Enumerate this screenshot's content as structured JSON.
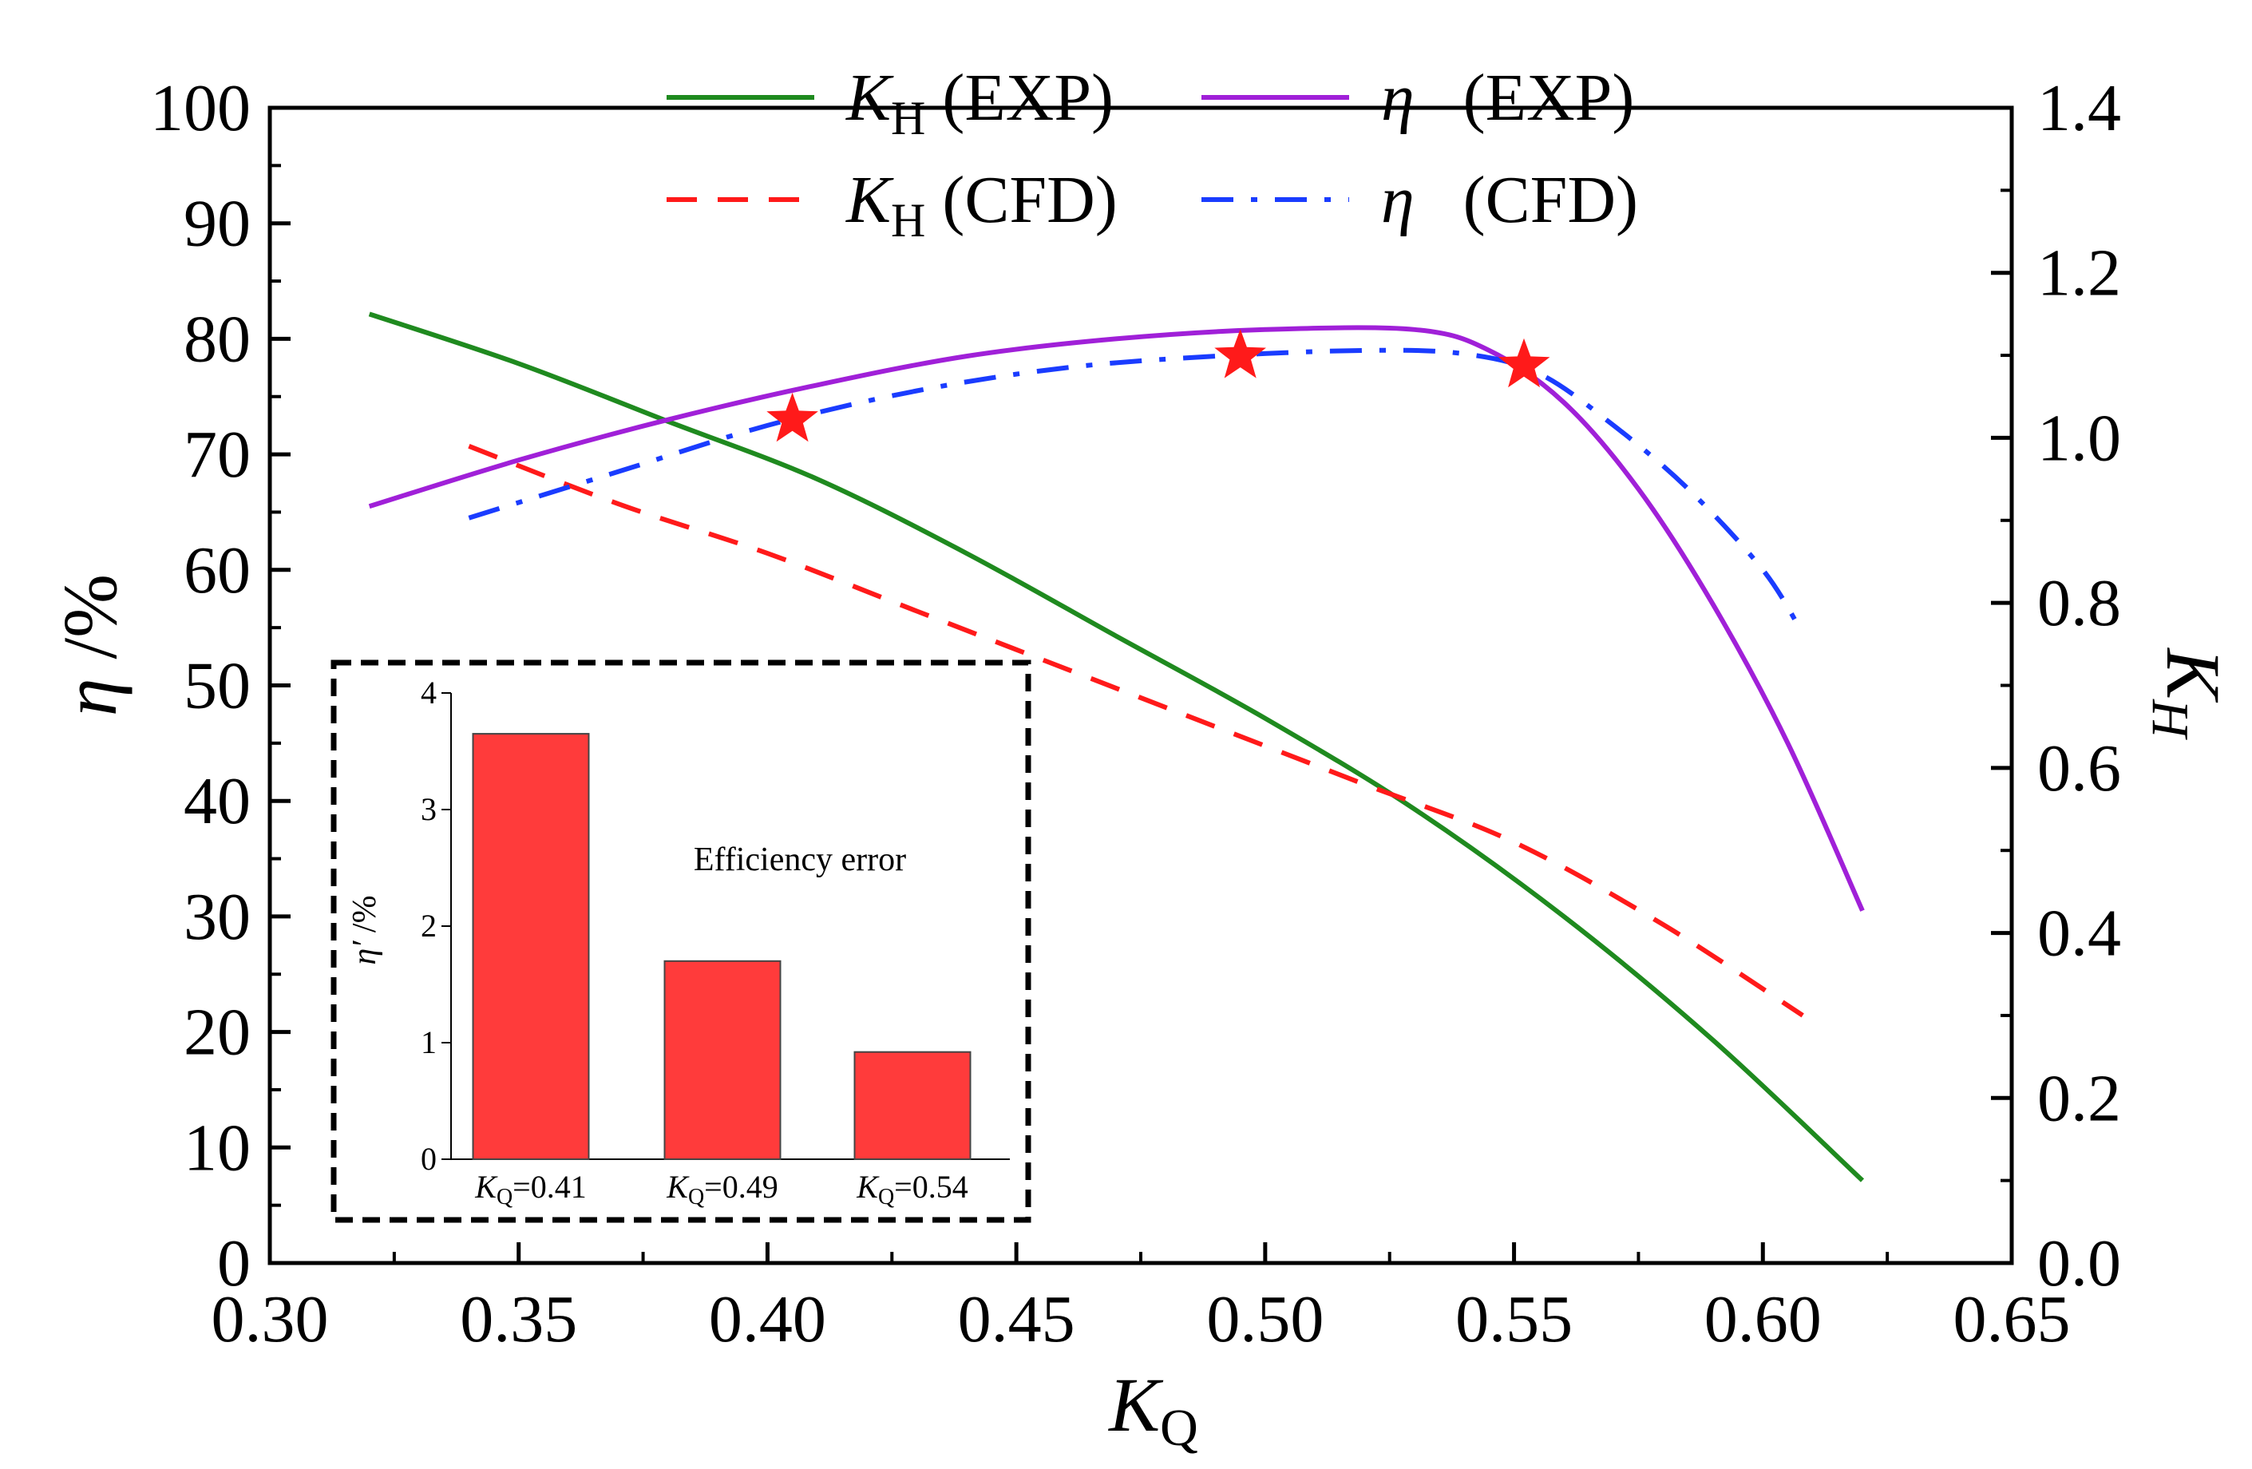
{
  "chart_data": [
    {
      "type": "line",
      "xlabel": "K_Q",
      "ylabel_left": "η /%",
      "ylabel_right": "K_H",
      "x_ticks": [
        "0.30",
        "0.35",
        "0.40",
        "0.45",
        "0.50",
        "0.55",
        "0.60",
        "0.65"
      ],
      "y_left_ticks": [
        "0",
        "10",
        "20",
        "30",
        "40",
        "50",
        "60",
        "70",
        "80",
        "90",
        "100"
      ],
      "y_right_ticks": [
        "0.0",
        "0.2",
        "0.4",
        "0.6",
        "0.8",
        "1.0",
        "1.2",
        "1.4"
      ],
      "xlim": [
        0.3,
        0.65
      ],
      "ylim_left": [
        0,
        100
      ],
      "ylim_right": [
        0,
        1.4
      ],
      "legend_position": "top",
      "series": [
        {
          "name": "K_H (EXP)",
          "label_main": "K",
          "label_sub": "H",
          "label_suffix": "(EXP)",
          "axis": "right",
          "style": "solid",
          "color": "#1f8a1f",
          "x": [
            0.32,
            0.35,
            0.38,
            0.41,
            0.44,
            0.47,
            0.5,
            0.53,
            0.56,
            0.59,
            0.62
          ],
          "y": [
            1.15,
            1.09,
            1.02,
            0.95,
            0.86,
            0.76,
            0.66,
            0.55,
            0.42,
            0.27,
            0.1
          ]
        },
        {
          "name": "K_H (CFD)",
          "label_main": "K",
          "label_sub": "H",
          "label_suffix": "(CFD)",
          "axis": "right",
          "style": "dash",
          "color": "#ff1a1a",
          "x": [
            0.34,
            0.37,
            0.4,
            0.43,
            0.46,
            0.49,
            0.52,
            0.55,
            0.58,
            0.608
          ],
          "y": [
            0.99,
            0.92,
            0.86,
            0.79,
            0.72,
            0.65,
            0.58,
            0.51,
            0.41,
            0.3
          ]
        },
        {
          "name": "η (EXP)",
          "label_main": "η",
          "label_sub": "",
          "label_suffix": "(EXP)",
          "axis": "left",
          "style": "solid",
          "color": "#a020d8",
          "x": [
            0.32,
            0.35,
            0.38,
            0.41,
            0.44,
            0.47,
            0.5,
            0.53,
            0.545,
            0.56,
            0.575,
            0.59,
            0.605,
            0.62
          ],
          "y": [
            65.5,
            69.5,
            73.0,
            76.0,
            78.5,
            80.0,
            80.8,
            80.8,
            79.0,
            74.5,
            67.0,
            57.0,
            45.0,
            30.5
          ]
        },
        {
          "name": "η (CFD)",
          "label_main": "η",
          "label_sub": "",
          "label_suffix": "(CFD)",
          "axis": "left",
          "style": "dashdot",
          "color": "#1a3cff",
          "x": [
            0.34,
            0.37,
            0.4,
            0.43,
            0.46,
            0.49,
            0.52,
            0.54,
            0.555,
            0.57,
            0.585,
            0.6,
            0.608
          ],
          "y": [
            64.5,
            68.5,
            72.5,
            75.5,
            77.5,
            78.5,
            79.0,
            78.7,
            77.0,
            72.5,
            67.0,
            60.0,
            54.5
          ]
        }
      ],
      "markers": [
        {
          "x": 0.405,
          "y": 73.0,
          "color": "#ff1a1a"
        },
        {
          "x": 0.495,
          "y": 78.5,
          "color": "#ff1a1a"
        },
        {
          "x": 0.552,
          "y": 77.7,
          "color": "#ff1a1a"
        }
      ]
    },
    {
      "type": "bar",
      "title": "Efficiency error",
      "ylabel": "η′ /%",
      "categories": [
        "K_Q=0.41",
        "K_Q=0.49",
        "K_Q=0.54"
      ],
      "category_value_labels": [
        "=0.41",
        "=0.49",
        "=0.54"
      ],
      "values": [
        3.65,
        1.7,
        0.92
      ],
      "ylim": [
        0,
        4
      ],
      "y_ticks": [
        "0",
        "1",
        "2",
        "3",
        "4"
      ],
      "bar_color": "#ff3b3b"
    }
  ]
}
